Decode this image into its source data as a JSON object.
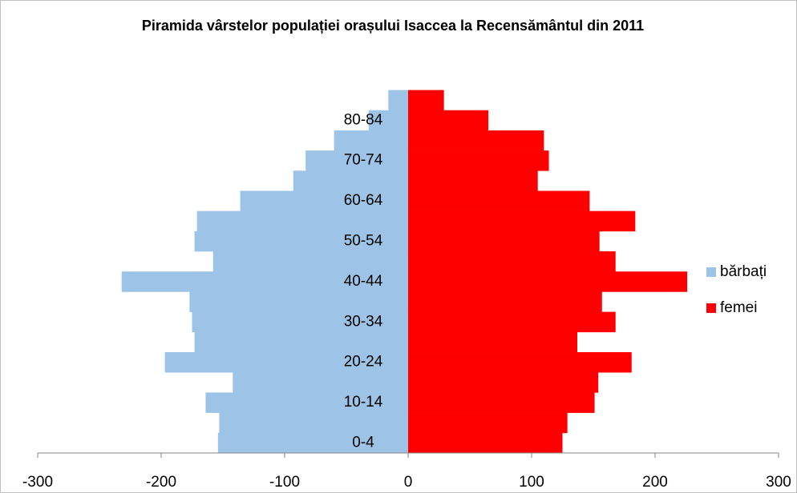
{
  "chart_data": {
    "type": "bar",
    "orientation": "horizontal",
    "title": "Piramida vârstelor populației orașului Isaccea la Recensământul din 2011",
    "categories": [
      "0-4",
      null,
      "10-14",
      null,
      "20-24",
      null,
      "30-34",
      null,
      "40-44",
      null,
      "50-54",
      null,
      "60-64",
      null,
      "70-74",
      null,
      "80-84",
      null
    ],
    "series": [
      {
        "name": "bărbați",
        "color": "#9dc3e6",
        "values": [
          -154,
          -153,
          -164,
          -142,
          -197,
          -173,
          -175,
          -177,
          -232,
          -158,
          -173,
          -171,
          -136,
          -93,
          -83,
          -60,
          -32,
          -16
        ]
      },
      {
        "name": "femei",
        "color": "#ff0000",
        "values": [
          125,
          129,
          151,
          154,
          181,
          137,
          168,
          157,
          226,
          168,
          155,
          184,
          147,
          105,
          114,
          110,
          65,
          29
        ]
      }
    ],
    "xlim": [
      -300,
      300
    ],
    "xticks": [
      -300,
      -200,
      -100,
      0,
      100,
      200,
      300
    ],
    "grid": false,
    "legend": "right"
  }
}
